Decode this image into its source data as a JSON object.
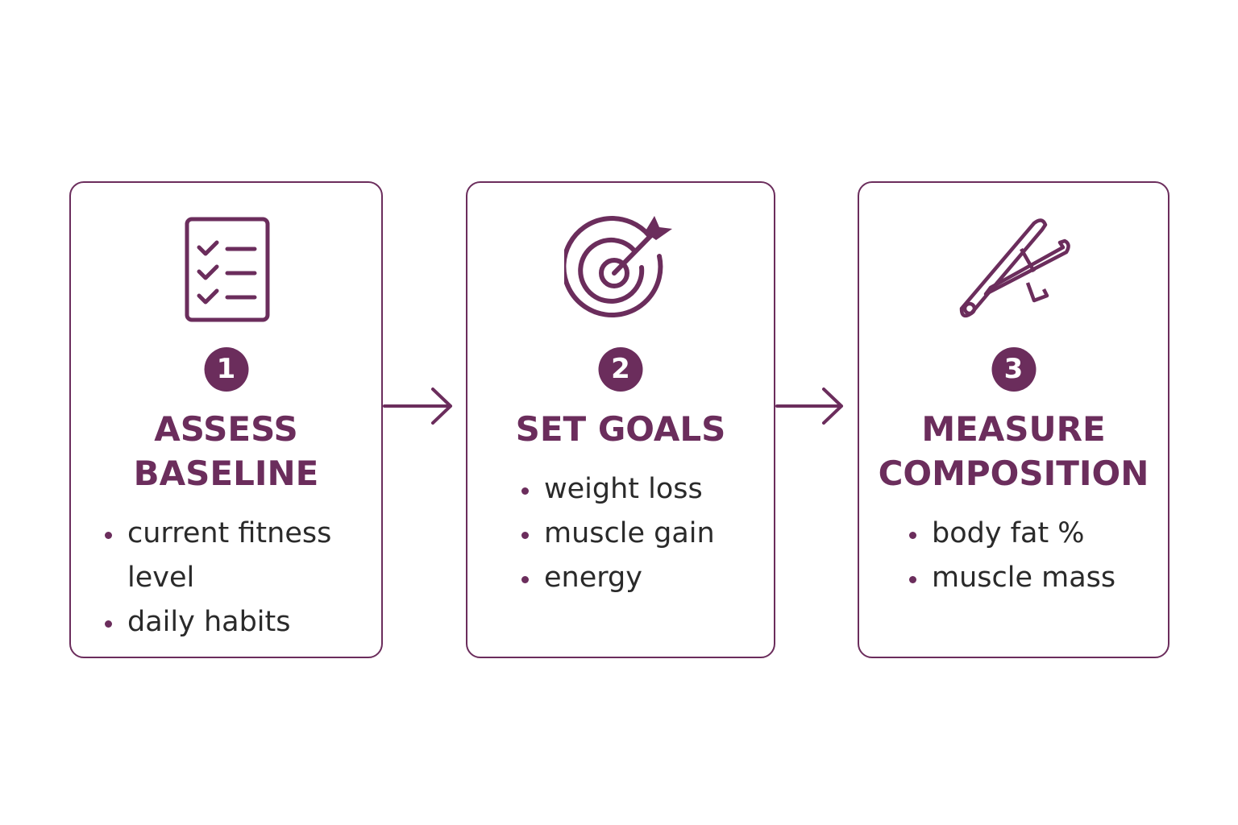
{
  "accent_color": "#6b2d5c",
  "steps": [
    {
      "number": "1",
      "title": "ASSESS BASELINE",
      "icon": "checklist-icon",
      "bullets": [
        "current fitness level",
        "daily habits"
      ]
    },
    {
      "number": "2",
      "title": "SET GOALS",
      "icon": "target-icon",
      "bullets": [
        "weight loss",
        "muscle gain",
        "energy"
      ]
    },
    {
      "number": "3",
      "title": "MEASURE COMPOSITION",
      "icon": "caliper-icon",
      "bullets": [
        "body fat %",
        "muscle mass"
      ]
    }
  ]
}
